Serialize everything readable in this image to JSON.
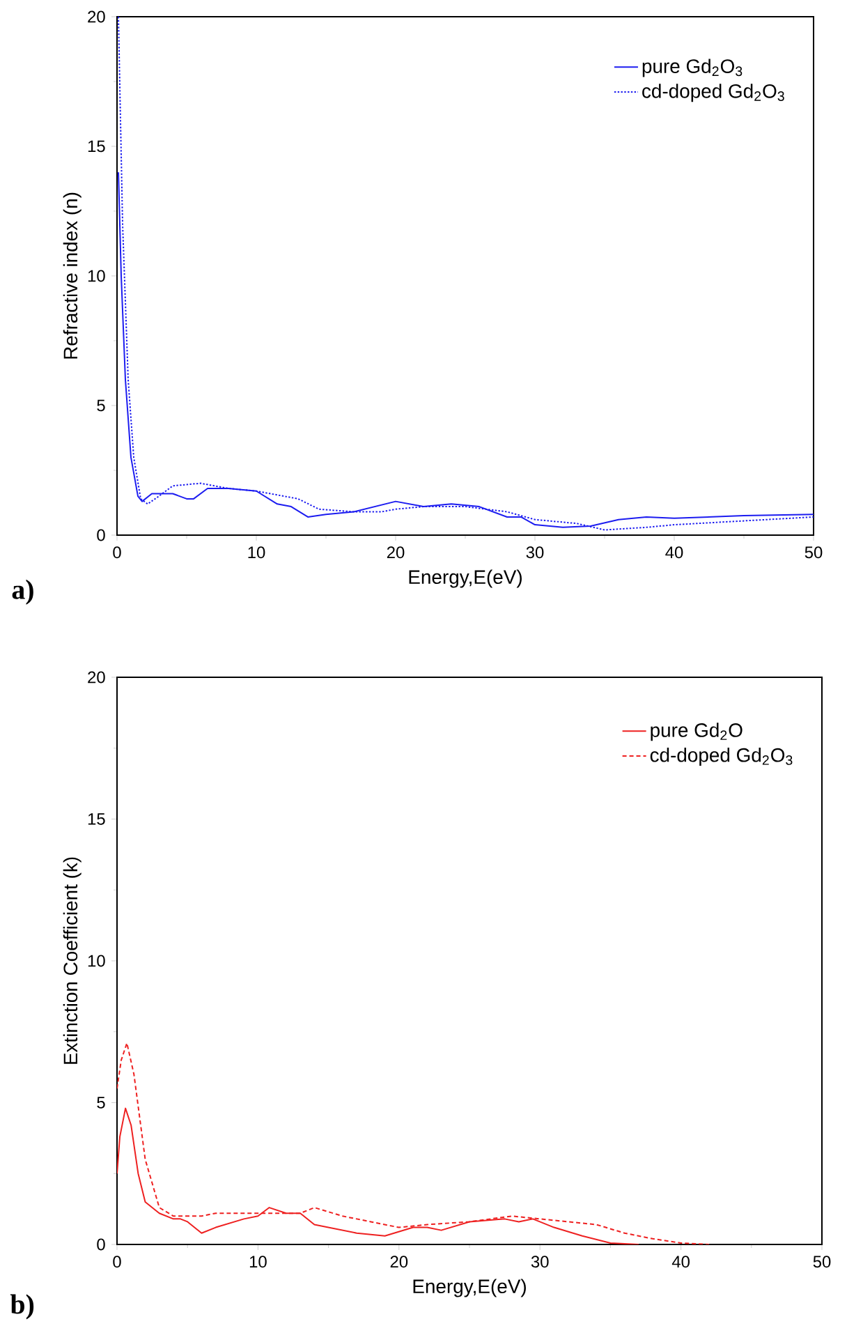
{
  "chart_data": [
    {
      "type": "line",
      "xlabel": "Energy,E(eV)",
      "ylabel": "Refractive index (n)",
      "xlim": [
        0,
        50
      ],
      "ylim": [
        0,
        20
      ],
      "xticks": [
        0,
        10,
        20,
        30,
        40,
        50
      ],
      "yticks": [
        0,
        5,
        10,
        15,
        20
      ],
      "legend": "top right",
      "annotations": [
        "**a)**"
      ],
      "series": [
        {
          "name": "pure Gd$_{2}$O$_{3}$",
          "color": "#1c1cf0",
          "line_style": "solid",
          "x": [
            0.1,
            0.3,
            0.6,
            1.0,
            1.5,
            1.8,
            2.5,
            4,
            5,
            5.5,
            6.5,
            8,
            10,
            11.5,
            12.5,
            13.7,
            15,
            17,
            20,
            22,
            24,
            26,
            28,
            29,
            30,
            32,
            34,
            36,
            38,
            40,
            45,
            50
          ],
          "values": [
            14,
            10,
            6,
            3,
            1.5,
            1.3,
            1.6,
            1.6,
            1.4,
            1.4,
            1.8,
            1.8,
            1.7,
            1.2,
            1.1,
            0.7,
            0.8,
            0.9,
            1.3,
            1.1,
            1.2,
            1.1,
            0.7,
            0.7,
            0.4,
            0.3,
            0.35,
            0.6,
            0.7,
            0.65,
            0.75,
            0.8
          ]
        },
        {
          "name": "cd-doped Gd$_{2}$O$_{3}$",
          "color": "#1c1cf0",
          "line_style": "dotted",
          "x": [
            0.1,
            0.4,
            0.8,
            1.2,
            1.7,
            2.2,
            3,
            4,
            6,
            8,
            10,
            12,
            13,
            14.5,
            17,
            19,
            20,
            22,
            25,
            28,
            30,
            33,
            35,
            38,
            40,
            45,
            50
          ],
          "values": [
            20,
            12,
            6,
            3,
            1.4,
            1.2,
            1.5,
            1.9,
            2.0,
            1.8,
            1.7,
            1.5,
            1.4,
            1.0,
            0.9,
            0.9,
            1.0,
            1.1,
            1.1,
            0.9,
            0.6,
            0.45,
            0.2,
            0.3,
            0.4,
            0.55,
            0.7
          ]
        }
      ]
    },
    {
      "type": "line",
      "xlabel": "Energy,E(eV)",
      "ylabel": "Extinction Coefficient (k)",
      "xlim": [
        0,
        50
      ],
      "ylim": [
        0,
        20
      ],
      "xticks": [
        0,
        10,
        20,
        30,
        40,
        50
      ],
      "yticks": [
        0,
        5,
        10,
        15,
        20
      ],
      "legend": "top right",
      "annotations": [
        "**b)**"
      ],
      "series": [
        {
          "name": "pure Gd$_{2}$O",
          "color": "#ee2020",
          "line_style": "solid",
          "x": [
            0,
            0.2,
            0.6,
            1.0,
            1.5,
            2,
            3,
            4,
            4.5,
            5,
            6,
            7,
            9,
            10,
            10.8,
            12,
            13,
            14,
            15,
            17,
            19,
            21,
            22,
            23,
            25,
            27.5,
            28.5,
            29.5,
            31,
            33,
            35,
            37
          ],
          "values": [
            2.5,
            3.8,
            4.8,
            4.2,
            2.5,
            1.5,
            1.1,
            0.9,
            0.9,
            0.8,
            0.4,
            0.6,
            0.9,
            1.0,
            1.3,
            1.1,
            1.1,
            0.7,
            0.6,
            0.4,
            0.3,
            0.6,
            0.6,
            0.5,
            0.8,
            0.9,
            0.8,
            0.9,
            0.6,
            0.3,
            0.05,
            0.0
          ]
        },
        {
          "name": "cd-doped Gd$_{2}$O$_{3}$",
          "color": "#ee2020",
          "line_style": "dashed",
          "x": [
            0,
            0.3,
            0.7,
            1.2,
            2,
            3,
            4,
            6,
            7,
            10,
            12,
            13,
            14,
            16,
            18,
            20,
            22,
            25,
            28,
            30,
            32,
            34,
            36,
            38,
            40,
            42
          ],
          "values": [
            5.5,
            6.5,
            7.1,
            6,
            3,
            1.3,
            1.0,
            1.0,
            1.1,
            1.1,
            1.1,
            1.1,
            1.3,
            1.0,
            0.8,
            0.6,
            0.7,
            0.8,
            1.0,
            0.9,
            0.8,
            0.7,
            0.4,
            0.2,
            0.05,
            0.0
          ]
        }
      ]
    }
  ]
}
